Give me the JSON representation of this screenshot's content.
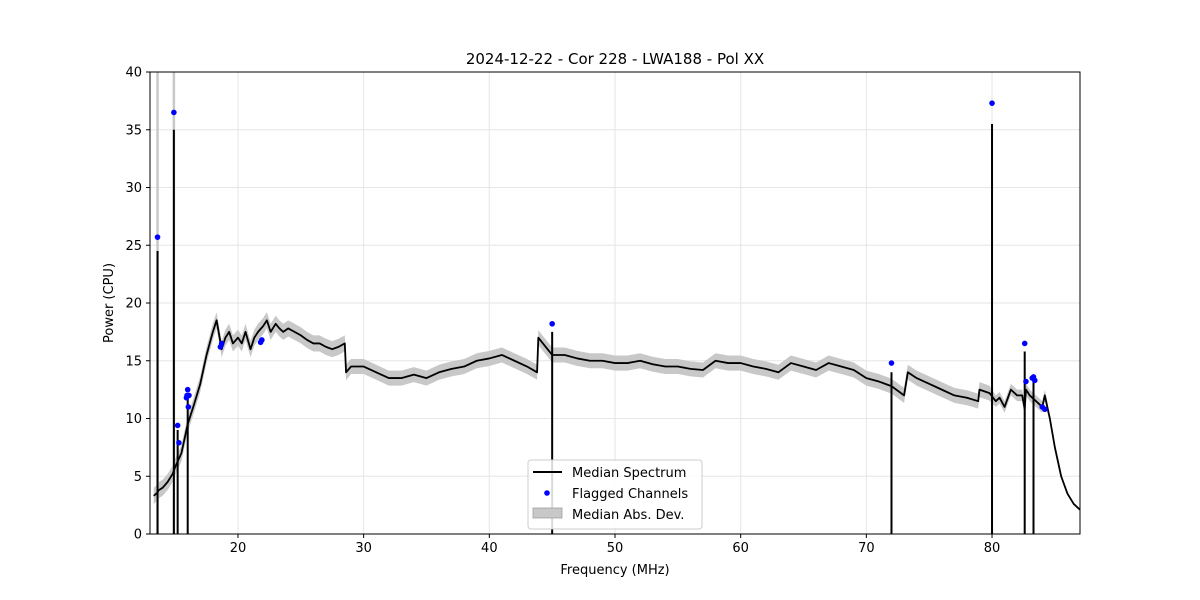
{
  "chart_data": {
    "type": "line",
    "title": "2024-12-22 - Cor 228 - LWA188 - Pol XX",
    "xlabel": "Frequency (MHz)",
    "ylabel": "Power (CPU)",
    "xlim": [
      13,
      87
    ],
    "ylim": [
      0,
      40
    ],
    "xticks": [
      20,
      30,
      40,
      50,
      60,
      70,
      80
    ],
    "yticks": [
      0,
      5,
      10,
      15,
      20,
      25,
      30,
      35,
      40
    ],
    "grid": true,
    "legend_position": "lower-center",
    "colors": {
      "median": "#000000",
      "flagged": "#0000ff",
      "mad": "#c8c8c8"
    },
    "series": [
      {
        "name": "Median Spectrum",
        "kind": "line",
        "x": [
          13.3,
          13.6,
          13.7,
          14.0,
          14.4,
          14.8,
          15.0,
          15.5,
          16.0,
          16.5,
          17.0,
          17.5,
          18.0,
          18.3,
          18.7,
          19.0,
          19.3,
          19.6,
          20.0,
          20.3,
          20.6,
          21.0,
          21.3,
          21.6,
          22.0,
          22.3,
          22.6,
          23.0,
          23.3,
          23.6,
          24.0,
          24.5,
          25.0,
          25.5,
          26.0,
          26.5,
          27.0,
          27.5,
          28.0,
          28.5,
          28.6,
          29.0,
          30.0,
          31.0,
          32.0,
          33.0,
          34.0,
          35.0,
          36.0,
          37.0,
          38.0,
          39.0,
          40.0,
          41.0,
          42.0,
          43.0,
          43.8,
          43.9,
          45.0,
          46.0,
          47.0,
          48.0,
          49.0,
          50.0,
          51.0,
          52.0,
          53.0,
          54.0,
          55.0,
          56.0,
          57.0,
          58.0,
          59.0,
          60.0,
          61.0,
          62.0,
          63.0,
          64.0,
          65.0,
          66.0,
          67.0,
          68.0,
          69.0,
          70.0,
          71.0,
          72.0,
          73.0,
          73.3,
          74.0,
          75.0,
          76.0,
          77.0,
          78.0,
          78.9,
          79.0,
          79.8,
          80.3,
          80.6,
          81.0,
          81.5,
          82.0,
          82.4,
          82.6,
          82.7,
          83.0,
          83.2,
          83.5,
          84.0,
          84.2,
          84.4,
          84.6,
          85.0,
          85.5,
          86.0,
          86.5,
          87.0
        ],
        "y": [
          3.3,
          3.6,
          3.8,
          4.0,
          4.5,
          5.2,
          5.8,
          7.0,
          9.5,
          11.2,
          13.0,
          15.5,
          17.5,
          18.5,
          16.0,
          17.0,
          17.5,
          16.5,
          17.0,
          16.5,
          17.5,
          16.0,
          17.0,
          17.5,
          18.0,
          18.5,
          17.5,
          18.2,
          17.8,
          17.5,
          17.8,
          17.5,
          17.2,
          16.8,
          16.5,
          16.5,
          16.2,
          16.0,
          16.2,
          16.5,
          14.0,
          14.5,
          14.5,
          14.0,
          13.5,
          13.5,
          13.8,
          13.5,
          14.0,
          14.3,
          14.5,
          15.0,
          15.2,
          15.5,
          15.0,
          14.5,
          14.0,
          17.0,
          15.5,
          15.5,
          15.2,
          15.0,
          15.0,
          14.8,
          14.8,
          15.0,
          14.7,
          14.5,
          14.5,
          14.3,
          14.2,
          15.0,
          14.8,
          14.8,
          14.5,
          14.3,
          14.0,
          14.8,
          14.5,
          14.2,
          14.8,
          14.5,
          14.2,
          13.5,
          13.2,
          12.8,
          12.0,
          14.0,
          13.5,
          13.0,
          12.5,
          12.0,
          11.8,
          11.5,
          12.5,
          12.2,
          11.5,
          11.8,
          11.0,
          12.5,
          12.0,
          12.0,
          10.8,
          12.5,
          12.0,
          11.8,
          11.5,
          11.0,
          12.0,
          11.0,
          10.0,
          7.5,
          5.0,
          3.5,
          2.6,
          2.1
        ]
      }
    ],
    "spikes": [
      {
        "x": 13.6,
        "y": 24.5
      },
      {
        "x": 14.9,
        "y": 35.0
      },
      {
        "x": 15.2,
        "y": 9.0
      },
      {
        "x": 16.0,
        "y": 12.0
      },
      {
        "x": 45.0,
        "y": 17.5
      },
      {
        "x": 72.0,
        "y": 14.0
      },
      {
        "x": 80.0,
        "y": 35.5
      },
      {
        "x": 82.6,
        "y": 15.8
      },
      {
        "x": 83.3,
        "y": 13.2
      }
    ],
    "flagged": {
      "name": "Flagged Channels",
      "x": [
        13.6,
        14.9,
        15.2,
        15.3,
        15.9,
        15.95,
        16.0,
        16.05,
        16.1,
        18.6,
        18.7,
        21.8,
        21.9,
        45.0,
        72.0,
        80.0,
        82.6,
        82.7,
        83.2,
        83.3,
        83.4,
        84.0,
        84.2
      ],
      "y": [
        25.7,
        36.5,
        9.4,
        7.9,
        11.8,
        12.0,
        12.5,
        11.0,
        12.0,
        16.2,
        16.5,
        16.6,
        16.8,
        18.2,
        14.8,
        37.3,
        16.5,
        13.2,
        13.5,
        13.6,
        13.3,
        11.0,
        10.8
      ]
    },
    "mad": {
      "name": "Median Abs. Dev.",
      "width_by_range": [
        {
          "from": 13.0,
          "to": 28.6,
          "halfwidth": 0.7
        },
        {
          "from": 28.6,
          "to": 80.0,
          "halfwidth": 0.65
        },
        {
          "from": 80.0,
          "to": 84.5,
          "halfwidth": 0.5
        },
        {
          "from": 84.5,
          "to": 87.0,
          "halfwidth": 0.05
        }
      ],
      "spike_extents": [
        {
          "x": 13.6,
          "y": 40
        },
        {
          "x": 14.9,
          "y": 40
        }
      ]
    },
    "legend": [
      "Median Spectrum",
      "Flagged Channels",
      "Median Abs. Dev."
    ]
  }
}
